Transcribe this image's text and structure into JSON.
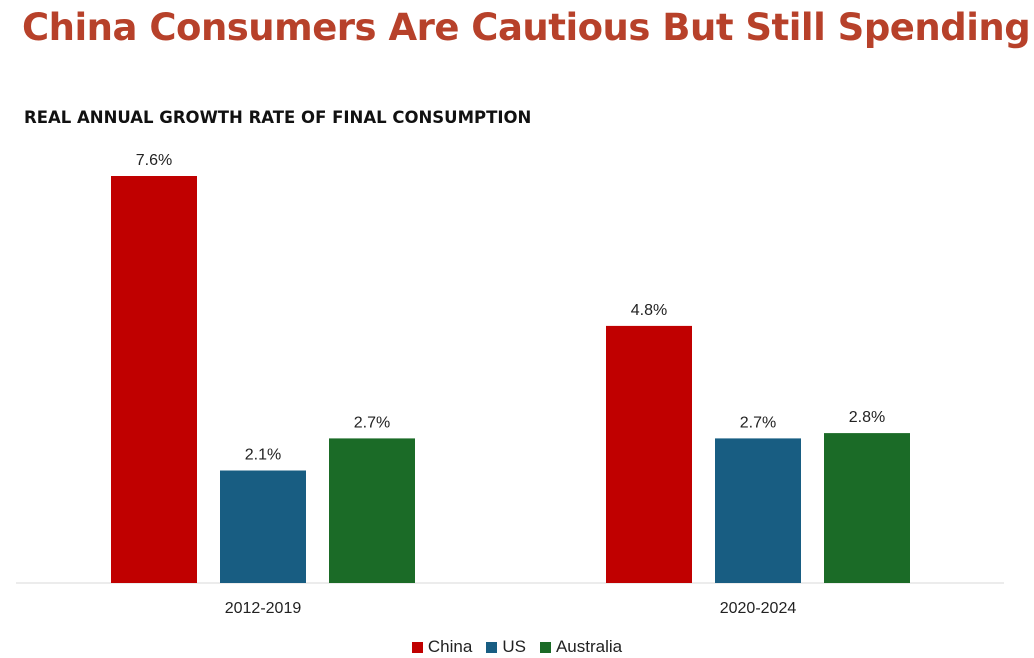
{
  "headline": "China Consumers Are Cautious But Still Spending",
  "chart_data": {
    "type": "bar",
    "title": "REAL ANNUAL GROWTH RATE OF FINAL CONSUMPTION",
    "categories": [
      "2012-2019",
      "2020-2024"
    ],
    "series": [
      {
        "name": "China",
        "color": "#C00000",
        "values": [
          7.6,
          4.8
        ],
        "labels": [
          "7.6%",
          "4.8%"
        ]
      },
      {
        "name": "US",
        "color": "#185D82",
        "values": [
          2.1,
          2.7
        ],
        "labels": [
          "2.1%",
          "2.7%"
        ]
      },
      {
        "name": "Australia",
        "color": "#1B6B27",
        "values": [
          2.7,
          2.8
        ],
        "labels": [
          "2.7%",
          "2.8%"
        ]
      }
    ],
    "ylim": [
      0,
      8
    ],
    "grid": false,
    "legend_position": "bottom-center",
    "data_labels": true
  }
}
